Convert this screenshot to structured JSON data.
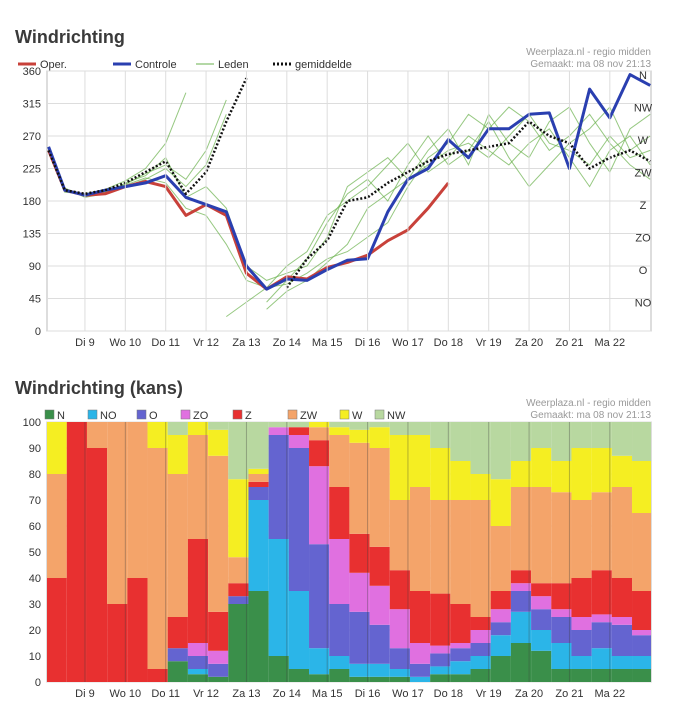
{
  "chart_data": [
    {
      "type": "line",
      "title": "Windrichting",
      "source": "Weerplaza.nl - regio midden",
      "created": "Gemaakt: ma 08 nov 21:13",
      "x": [
        8.6,
        9.0,
        9.5,
        10.0,
        10.5,
        11.0,
        11.5,
        12.0,
        12.5,
        13.0,
        13.5,
        14.0,
        14.5,
        15.0,
        15.5,
        16.0,
        16.5,
        17.0,
        17.5,
        18.0,
        18.5,
        19.0,
        19.5,
        20.0,
        20.5,
        21.0,
        21.5,
        22.0,
        22.5,
        23.0,
        23.5
      ],
      "xlim": [
        8.56,
        23.52
      ],
      "xticks": [
        {
          "value": 9.5,
          "label": "Di 9"
        },
        {
          "value": 10.5,
          "label": "Wo 10"
        },
        {
          "value": 11.5,
          "label": "Do 11"
        },
        {
          "value": 12.5,
          "label": "Vr 12"
        },
        {
          "value": 13.5,
          "label": "Za 13"
        },
        {
          "value": 14.5,
          "label": "Zo 14"
        },
        {
          "value": 15.5,
          "label": "Ma 15"
        },
        {
          "value": 16.5,
          "label": "Di 16"
        },
        {
          "value": 17.5,
          "label": "Wo 17"
        },
        {
          "value": 18.5,
          "label": "Do 18"
        },
        {
          "value": 19.5,
          "label": "Vr 19"
        },
        {
          "value": 20.5,
          "label": "Za 20"
        },
        {
          "value": 21.5,
          "label": "Zo 21"
        },
        {
          "value": 22.5,
          "label": "Ma 22"
        }
      ],
      "ylim": [
        0,
        360
      ],
      "yticks": [
        0,
        45,
        90,
        135,
        180,
        225,
        270,
        315,
        360
      ],
      "direction_ticks": [
        {
          "value": 360,
          "label": "N"
        },
        {
          "value": 315,
          "label": "NW"
        },
        {
          "value": 270,
          "label": "W"
        },
        {
          "value": 225,
          "label": "ZW"
        },
        {
          "value": 180,
          "label": "Z"
        },
        {
          "value": 135,
          "label": "ZO"
        },
        {
          "value": 90,
          "label": "O"
        },
        {
          "value": 45,
          "label": "NO"
        }
      ],
      "grid": true,
      "series": [
        {
          "name": "Oper.",
          "color": "#c8413a",
          "values": [
            250,
            195,
            188,
            190,
            200,
            207,
            200,
            160,
            175,
            160,
            80,
            58,
            75,
            72,
            88,
            95,
            105,
            125,
            140,
            170,
            205,
            null,
            null,
            null,
            null,
            null,
            null,
            null,
            null,
            null,
            null
          ]
        },
        {
          "name": "Controle",
          "color": "#2a3fb0",
          "values": [
            255,
            195,
            188,
            195,
            200,
            205,
            215,
            185,
            175,
            165,
            90,
            58,
            72,
            70,
            85,
            98,
            100,
            165,
            210,
            225,
            265,
            240,
            280,
            280,
            300,
            302,
            225,
            335,
            295,
            355,
            340
          ]
        },
        {
          "name": "Leden",
          "color": "#6ab04c",
          "members": [
            [
              250,
              195,
              188,
              192,
              200,
              210,
              225,
              200,
              230,
              300,
              null,
              30,
              55,
              70,
              95,
              120,
              170,
              190,
              210,
              230,
              250,
              260,
              240,
              270,
              300,
              260,
              250,
              230,
              270,
              240,
              250
            ],
            [
              255,
              198,
              185,
              190,
              205,
              215,
              240,
              185,
              200,
              170,
              90,
              70,
              80,
              90,
              130,
              200,
              220,
              240,
              210,
              250,
              280,
              230,
              300,
              260,
              240,
              290,
              310,
              260,
              220,
              280,
              300
            ],
            [
              248,
              192,
              190,
              196,
              208,
              225,
              260,
              330,
              null,
              20,
              40,
              60,
              90,
              110,
              160,
              180,
              200,
              230,
              260,
              220,
              240,
              270,
              250,
              230,
              260,
              280,
              240,
              200,
              250,
              270,
              230
            ],
            [
              252,
              196,
              186,
              194,
              202,
              212,
              205,
              170,
              160,
              120,
              70,
              60,
              65,
              80,
              100,
              110,
              130,
              150,
              200,
              240,
              260,
              300,
              280,
              310,
              290,
              250,
              270,
              300,
              260,
              230,
              210
            ],
            [
              250,
              197,
              189,
              193,
              203,
              218,
              230,
              210,
              250,
              320,
              null,
              40,
              70,
              100,
              150,
              190,
              210,
              180,
              230,
              270,
              230,
              250,
              290,
              240,
              200,
              230,
              260,
              280,
              310,
              250,
              270
            ]
          ]
        },
        {
          "name": "gemiddelde",
          "color": "#111111",
          "dash": true,
          "values": [
            250,
            195,
            190,
            195,
            205,
            220,
            235,
            190,
            220,
            290,
            350,
            null,
            60,
            100,
            125,
            180,
            185,
            205,
            220,
            235,
            245,
            250,
            255,
            260,
            290,
            270,
            260,
            225,
            240,
            250,
            235
          ]
        }
      ]
    },
    {
      "type": "bar",
      "stacked": true,
      "title": "Windrichting (kans)",
      "source": "Weerplaza.nl - regio midden",
      "created": "Gemaakt: ma 08 nov 21:13",
      "x": [
        8.8,
        9.3,
        9.8,
        10.3,
        10.8,
        11.3,
        11.8,
        12.3,
        12.8,
        13.3,
        13.8,
        14.3,
        14.8,
        15.3,
        15.8,
        16.3,
        16.8,
        17.3,
        17.8,
        18.3,
        18.8,
        19.3,
        19.8,
        20.3,
        20.8,
        21.3,
        21.8,
        22.3,
        22.8,
        23.3
      ],
      "xlim": [
        8.56,
        23.52
      ],
      "xticks": [
        {
          "value": 9.5,
          "label": "Di 9"
        },
        {
          "value": 10.5,
          "label": "Wo 10"
        },
        {
          "value": 11.5,
          "label": "Do 11"
        },
        {
          "value": 12.5,
          "label": "Vr 12"
        },
        {
          "value": 13.5,
          "label": "Za 13"
        },
        {
          "value": 14.5,
          "label": "Zo 14"
        },
        {
          "value": 15.5,
          "label": "Ma 15"
        },
        {
          "value": 16.5,
          "label": "Di 16"
        },
        {
          "value": 17.5,
          "label": "Wo 17"
        },
        {
          "value": 18.5,
          "label": "Do 18"
        },
        {
          "value": 19.5,
          "label": "Vr 19"
        },
        {
          "value": 20.5,
          "label": "Za 20"
        },
        {
          "value": 21.5,
          "label": "Zo 21"
        },
        {
          "value": 22.5,
          "label": "Ma 22"
        }
      ],
      "ylim": [
        0,
        100
      ],
      "yticks": [
        0,
        10,
        20,
        30,
        40,
        50,
        60,
        70,
        80,
        90,
        100
      ],
      "grid": true,
      "series": [
        {
          "name": "N",
          "color": "#3a8f4a",
          "values": [
            0,
            0,
            0,
            0,
            0,
            0,
            8,
            3,
            2,
            30,
            35,
            10,
            5,
            3,
            5,
            2,
            2,
            2,
            0,
            3,
            3,
            5,
            10,
            15,
            12,
            5,
            5,
            5,
            5,
            5
          ]
        },
        {
          "name": "NO",
          "color": "#2bb5e8",
          "values": [
            0,
            0,
            0,
            0,
            0,
            0,
            0,
            2,
            0,
            0,
            35,
            45,
            30,
            10,
            5,
            5,
            5,
            3,
            2,
            3,
            5,
            5,
            8,
            12,
            8,
            10,
            5,
            8,
            5,
            5
          ]
        },
        {
          "name": "O",
          "color": "#6464d0",
          "values": [
            0,
            0,
            0,
            0,
            0,
            0,
            5,
            5,
            5,
            3,
            5,
            40,
            55,
            40,
            20,
            20,
            15,
            8,
            5,
            5,
            5,
            5,
            5,
            8,
            8,
            10,
            10,
            10,
            12,
            8
          ]
        },
        {
          "name": "ZO",
          "color": "#e070e0",
          "values": [
            0,
            0,
            0,
            0,
            0,
            0,
            0,
            5,
            5,
            0,
            0,
            3,
            5,
            30,
            25,
            15,
            15,
            15,
            8,
            3,
            2,
            5,
            5,
            3,
            5,
            3,
            5,
            3,
            3,
            2
          ]
        },
        {
          "name": "Z",
          "color": "#e83030",
          "values": [
            40,
            100,
            90,
            30,
            40,
            5,
            12,
            40,
            15,
            5,
            2,
            0,
            3,
            10,
            20,
            15,
            15,
            15,
            20,
            20,
            15,
            5,
            7,
            5,
            5,
            10,
            15,
            17,
            15,
            15
          ]
        },
        {
          "name": "ZW",
          "color": "#f4a46a",
          "values": [
            40,
            0,
            10,
            70,
            60,
            85,
            55,
            40,
            60,
            10,
            3,
            0,
            0,
            5,
            20,
            35,
            38,
            27,
            40,
            36,
            40,
            45,
            25,
            32,
            37,
            35,
            30,
            30,
            35,
            30
          ]
        },
        {
          "name": "W",
          "color": "#f5ee22",
          "values": [
            20,
            0,
            0,
            0,
            0,
            10,
            15,
            5,
            10,
            30,
            2,
            0,
            0,
            2,
            3,
            5,
            8,
            25,
            20,
            20,
            15,
            10,
            18,
            10,
            15,
            12,
            20,
            17,
            12,
            20
          ]
        },
        {
          "name": "NW",
          "color": "#b8d8a0",
          "values": [
            0,
            0,
            0,
            0,
            0,
            0,
            5,
            0,
            3,
            22,
            18,
            2,
            2,
            0,
            2,
            3,
            2,
            5,
            5,
            10,
            15,
            20,
            22,
            15,
            10,
            15,
            10,
            10,
            13,
            15
          ]
        }
      ]
    }
  ]
}
